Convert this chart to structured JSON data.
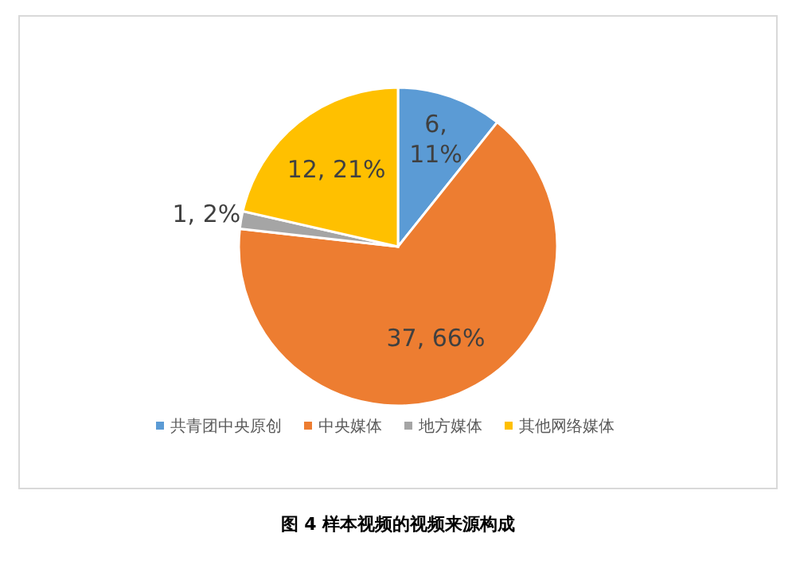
{
  "chart_data": {
    "type": "pie",
    "categories": [
      "共青团中央原创",
      "中央媒体",
      "地方媒体",
      "其他网络媒体"
    ],
    "values": [
      6,
      37,
      1,
      12
    ],
    "colors": [
      "#5b9bd5",
      "#ed7d31",
      "#a5a5a5",
      "#ffc000"
    ],
    "value_labels": [
      "6, 11%",
      "37, 66%",
      "1, 2%",
      "12, 21%"
    ],
    "legend": "bottom",
    "annotations": [
      "图 4  样本视频的视频来源构成"
    ]
  }
}
